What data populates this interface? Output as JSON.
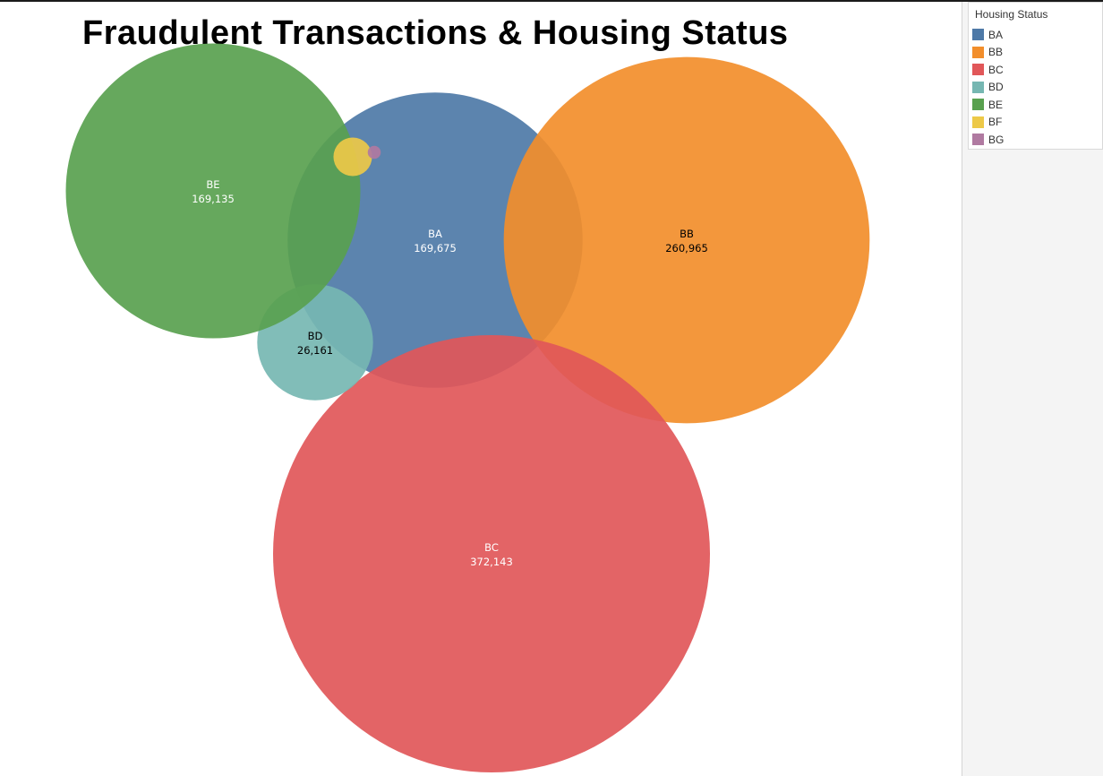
{
  "title": "Fraudulent Transactions & Housing Status",
  "legend": {
    "title": "Housing Status",
    "items": [
      {
        "label": "BA",
        "color": "#4e79a7"
      },
      {
        "label": "BB",
        "color": "#f28e2b"
      },
      {
        "label": "BC",
        "color": "#e15759"
      },
      {
        "label": "BD",
        "color": "#76b7b2"
      },
      {
        "label": "BE",
        "color": "#59a14f"
      },
      {
        "label": "BF",
        "color": "#edc948"
      },
      {
        "label": "BG",
        "color": "#b07aa1"
      }
    ]
  },
  "chart_data": {
    "type": "bubble",
    "title": "Fraudulent Transactions & Housing Status",
    "legend_title": "Housing Status",
    "legend_position": "right",
    "series": [
      {
        "label": "BA",
        "value": 169675,
        "value_label": "169,675",
        "color": "#4e79a7",
        "label_color": "#ffffff"
      },
      {
        "label": "BB",
        "value": 260965,
        "value_label": "260,965",
        "color": "#f28e2b",
        "label_color": "#000000"
      },
      {
        "label": "BC",
        "value": 372143,
        "value_label": "372,143",
        "color": "#e15759",
        "label_color": "#ffffff"
      },
      {
        "label": "BD",
        "value": 26161,
        "value_label": "26,161",
        "color": "#76b7b2",
        "label_color": "#000000"
      },
      {
        "label": "BE",
        "value": 169135,
        "value_label": "169,135",
        "color": "#59a14f",
        "label_color": "#ffffff"
      },
      {
        "label": "BF",
        "value": 2900,
        "color": "#edc948"
      },
      {
        "label": "BG",
        "value": 330,
        "color": "#b07aa1"
      }
    ]
  }
}
